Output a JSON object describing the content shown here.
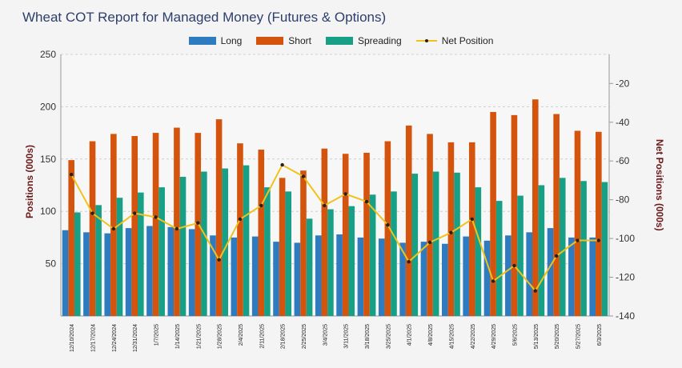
{
  "chart_data": {
    "type": "bar",
    "title": "Wheat COT Report for Managed Money (Futures & Options)",
    "ylabel": "Positions (000s)",
    "y2label": "Net Positions (000s)",
    "ylim": [
      0,
      250
    ],
    "y2lim": [
      -140,
      -5
    ],
    "yticks": [
      50,
      100,
      150,
      200,
      250
    ],
    "y2ticks": [
      -20,
      -40,
      -60,
      -80,
      -100,
      -120,
      -140
    ],
    "categories": [
      "12/10/2024",
      "12/17/2024",
      "12/24/2024",
      "12/31/2024",
      "1/7/2025",
      "1/14/2025",
      "1/21/2025",
      "1/28/2025",
      "2/4/2025",
      "2/11/2025",
      "2/18/2025",
      "2/25/2025",
      "3/4/2025",
      "3/11/2025",
      "3/18/2025",
      "3/25/2025",
      "4/1/2025",
      "4/8/2025",
      "4/15/2025",
      "4/22/2025",
      "4/29/2025",
      "5/6/2025",
      "5/13/2025",
      "5/20/2025",
      "5/27/2025",
      "6/3/2025"
    ],
    "series": [
      {
        "name": "Long",
        "color": "#2e7bbf",
        "values": [
          82,
          80,
          79,
          84,
          86,
          85,
          83,
          77,
          75,
          76,
          71,
          70,
          77,
          78,
          75,
          74,
          70,
          71,
          69,
          76,
          72,
          77,
          80,
          84,
          75,
          75
        ]
      },
      {
        "name": "Short",
        "color": "#d4540d",
        "values": [
          149,
          167,
          174,
          172,
          175,
          180,
          175,
          188,
          165,
          159,
          132,
          139,
          160,
          155,
          156,
          167,
          182,
          174,
          166,
          166,
          195,
          192,
          207,
          193,
          177,
          176
        ]
      },
      {
        "name": "Spreading",
        "color": "#17a086",
        "values": [
          99,
          106,
          113,
          118,
          123,
          133,
          138,
          141,
          144,
          123,
          119,
          93,
          102,
          105,
          116,
          119,
          136,
          138,
          137,
          123,
          110,
          115,
          125,
          132,
          129,
          128
        ]
      },
      {
        "name": "Net Position",
        "color": "#f1c21b",
        "type": "line",
        "axis": "right",
        "values": [
          -67,
          -87,
          -95,
          -87,
          -89,
          -95,
          -92,
          -111,
          -90,
          -83,
          -62,
          -68,
          -83,
          -77,
          -81,
          -93,
          -112,
          -102,
          -97,
          -90,
          -122,
          -114,
          -127,
          -109,
          -101,
          -101
        ]
      }
    ]
  }
}
